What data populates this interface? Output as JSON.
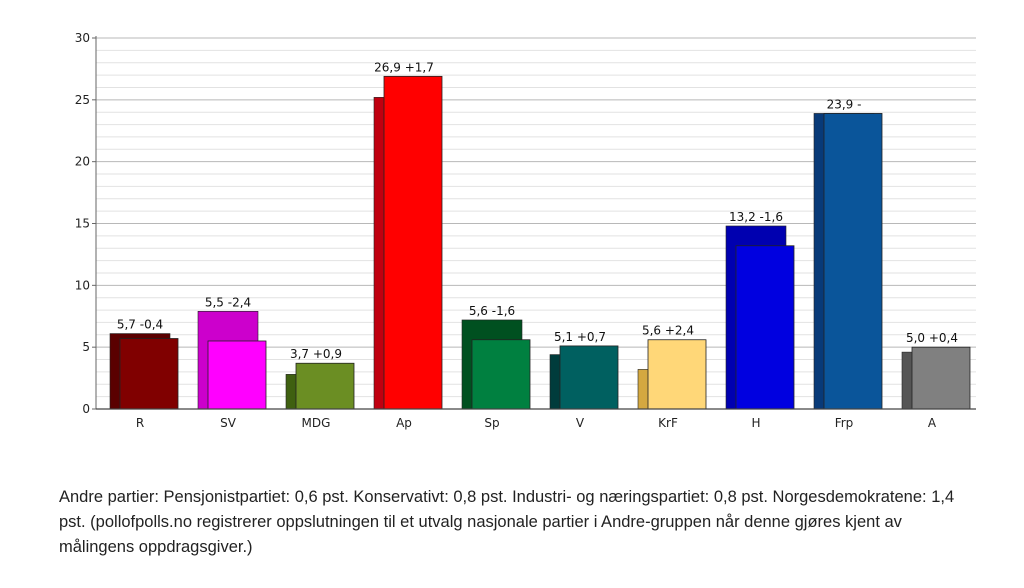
{
  "chart_data": {
    "type": "bar",
    "categories": [
      "R",
      "SV",
      "MDG",
      "Ap",
      "Sp",
      "V",
      "KrF",
      "H",
      "Frp",
      "A"
    ],
    "series": [
      {
        "values": [
          6.1,
          7.9,
          2.8,
          25.2,
          7.2,
          4.4,
          3.2,
          14.8,
          23.9,
          4.6
        ]
      },
      {
        "values": [
          5.7,
          5.5,
          3.7,
          26.9,
          5.6,
          5.1,
          5.6,
          13.2,
          23.9,
          5.0
        ]
      }
    ],
    "data_labels": [
      "5,7 -0,4",
      "5,5 -2,4",
      "3,7 +0,9",
      "26,9 +1,7",
      "5,6 -1,6",
      "5,1 +0,7",
      "5,6 +2,4",
      "13,2 -1,6",
      "23,9 -",
      "5,0 +0,4"
    ],
    "colors_current": [
      "#800000",
      "#ff00ff",
      "#6b8e23",
      "#ff0000",
      "#008040",
      "#006060",
      "#ffd778",
      "#0000e0",
      "#0a559a",
      "#808080"
    ],
    "colors_previous": [
      "#5a0000",
      "#cc00cc",
      "#3f6010",
      "#c00010",
      "#005020",
      "#003c3c",
      "#d4a840",
      "#0000b0",
      "#083a78",
      "#555555"
    ],
    "ylim": [
      0,
      30
    ],
    "y_ticks": [
      "0",
      "5",
      "10",
      "15",
      "20",
      "25",
      "30"
    ],
    "grid": true,
    "title": "",
    "xlabel": "",
    "ylabel": ""
  },
  "note": {
    "text": "Andre partier: Pensjonistpartiet: 0,6 pst. Konservativt: 0,8 pst. Industri- og næringspartiet: 0,8 pst. Norgesdemokratene: 1,4 pst. (pollofpolls.no registrerer oppslutningen til et utvalg nasjonale partier i Andre-gruppen når denne gjøres kjent av målingens oppdragsgiver.)"
  }
}
